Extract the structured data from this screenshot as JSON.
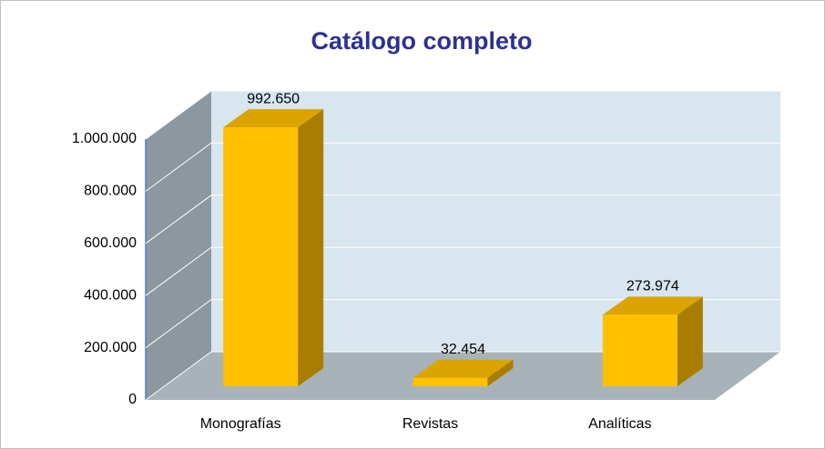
{
  "chart_data": {
    "type": "bar3d",
    "title": "Catálogo completo",
    "categories": [
      "Monografías",
      "Revistas",
      "Analíticas"
    ],
    "values": [
      992650,
      32454,
      273974
    ],
    "value_labels": [
      "992.650",
      "32.454",
      "273.974"
    ],
    "color": "#ffc000",
    "ylim": [
      0,
      1000000
    ],
    "yticks": [
      0,
      {
        "value": 200000,
        "label": "200.000"
      },
      {
        "value": 400000,
        "label": "400.000"
      },
      {
        "value": 600000,
        "label": "600.000"
      },
      {
        "value": 800000,
        "label": "800.000"
      },
      {
        "value": 1000000,
        "label": "1.000.000"
      }
    ],
    "grid": true
  }
}
